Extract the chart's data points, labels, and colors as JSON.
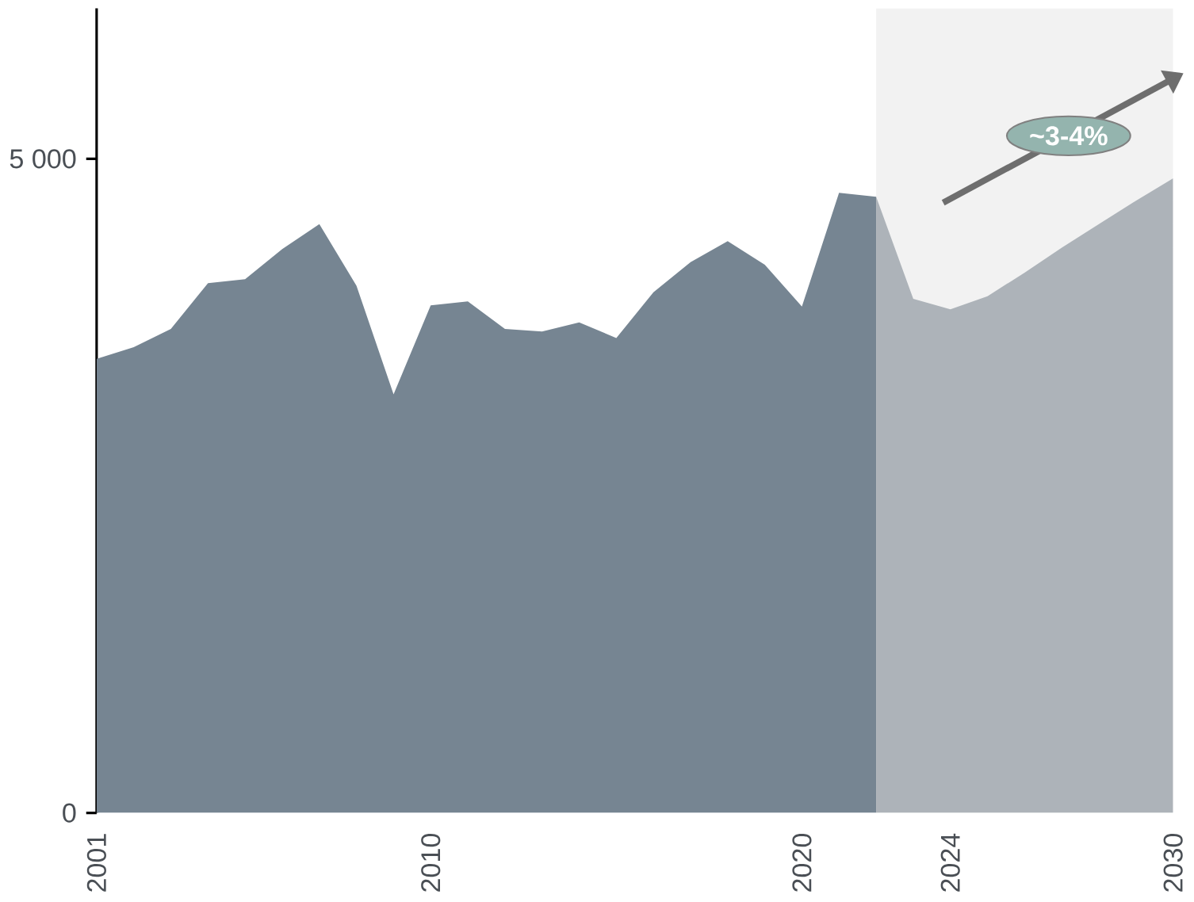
{
  "chart_data": {
    "type": "area",
    "xlim": [
      2001,
      2030
    ],
    "ylim": [
      0,
      6150
    ],
    "xticks": [
      2001,
      2010,
      2020,
      2024,
      2030
    ],
    "yticks": [
      0,
      {
        "value": 5000,
        "label": "5 000"
      }
    ],
    "series": [
      {
        "color": "#768592",
        "x": [
          2001,
          2002,
          2003,
          2004,
          2005,
          2006,
          2007,
          2008,
          2009,
          2010,
          2011,
          2012,
          2013,
          2014,
          2015,
          2016,
          2017,
          2018,
          2019,
          2020,
          2021,
          2022
        ],
        "values": [
          3470,
          3560,
          3700,
          4050,
          4080,
          4310,
          4500,
          4030,
          3200,
          3880,
          3910,
          3700,
          3680,
          3750,
          3630,
          3980,
          4210,
          4370,
          4190,
          3870,
          4740,
          4710
        ]
      },
      {
        "color": "#adb3b9",
        "x": [
          2022,
          2023,
          2024,
          2025,
          2026,
          2027,
          2028,
          2029,
          2030
        ],
        "values": [
          4710,
          3930,
          3850,
          3950,
          4130,
          4320,
          4500,
          4680,
          4850
        ]
      }
    ],
    "bands": [
      {
        "axis": "x",
        "from": 2022,
        "to": 2030,
        "color": "#f2f2f2"
      }
    ],
    "annotations": [
      "~3-4%"
    ]
  }
}
